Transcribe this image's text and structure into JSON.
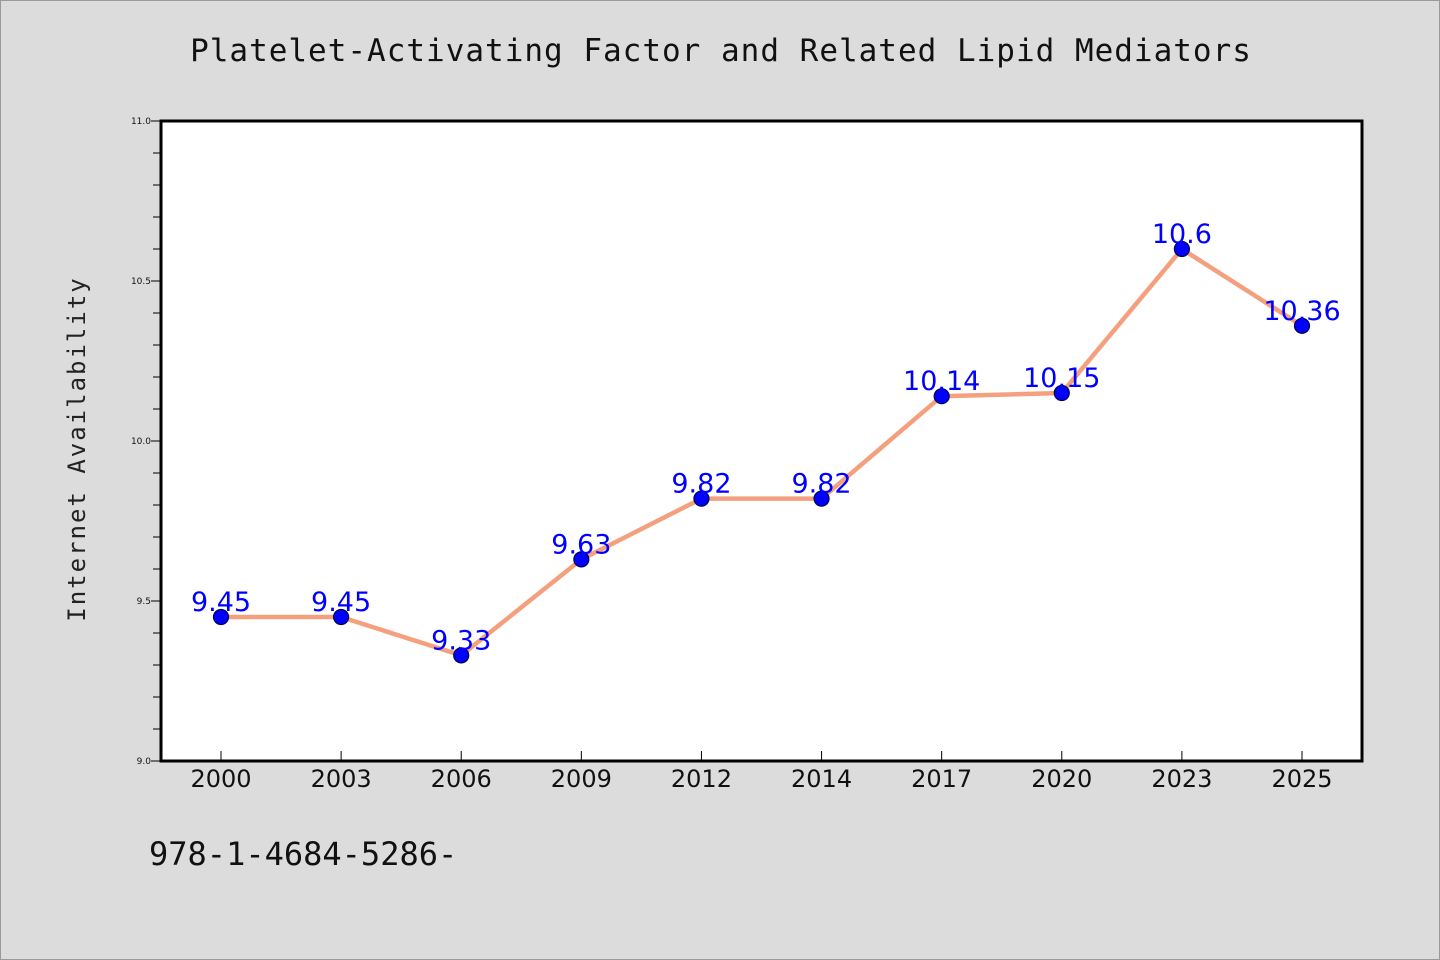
{
  "chart_data": {
    "type": "line",
    "title": "Platelet-Activating Factor and Related Lipid Mediators",
    "xlabel": "",
    "ylabel": "Internet Availability",
    "categories": [
      "2000",
      "2003",
      "2006",
      "2009",
      "2012",
      "2014",
      "2017",
      "2020",
      "2023",
      "2025"
    ],
    "series": [
      {
        "values": [
          9.45,
          9.45,
          9.33,
          9.63,
          9.82,
          9.82,
          10.14,
          10.15,
          10.6,
          10.36
        ],
        "data_labels": [
          "9.45",
          "9.45",
          "9.33",
          "9.63",
          "9.82",
          "9.82",
          "10.14",
          "10.15",
          "10.6",
          "10.36"
        ],
        "line_color": "#f4a07e",
        "marker_color": "#0000ff"
      }
    ],
    "ylim": [
      9.0,
      11.0
    ],
    "y_ticks": [
      "9.0",
      "9.5",
      "10.0",
      "10.5",
      "11.0"
    ],
    "y_tick_values": [
      9.0,
      9.5,
      10.0,
      10.5,
      11.0
    ],
    "grid": false
  },
  "footer": {
    "code": "978-1-4684-5286-"
  },
  "colors": {
    "background": "#dcdcdc",
    "plot_background": "#ffffff",
    "line": "#f4a07e",
    "marker": "#0000ff",
    "data_label": "#0000ff"
  }
}
